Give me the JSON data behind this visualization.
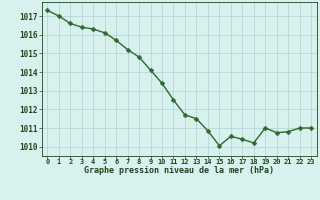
{
  "x": [
    0,
    1,
    2,
    3,
    4,
    5,
    6,
    7,
    8,
    9,
    10,
    11,
    12,
    13,
    14,
    15,
    16,
    17,
    18,
    19,
    20,
    21,
    22,
    23
  ],
  "y": [
    1017.3,
    1017.0,
    1016.6,
    1016.4,
    1016.3,
    1016.1,
    1015.7,
    1015.2,
    1014.8,
    1014.1,
    1013.4,
    1012.5,
    1011.7,
    1011.5,
    1010.85,
    1010.05,
    1010.55,
    1010.4,
    1010.2,
    1011.0,
    1010.75,
    1010.8,
    1011.0,
    1011.0
  ],
  "line_color": "#2d6a2d",
  "marker_color": "#2d6a2d",
  "bg_color": "#d8f0ee",
  "grid_color": "#b0d4d0",
  "label_color": "#1a4a1a",
  "xlabel": "Graphe pression niveau de la mer (hPa)",
  "ylim_min": 1009.5,
  "ylim_max": 1017.75,
  "yticks": [
    1010,
    1011,
    1012,
    1013,
    1014,
    1015,
    1016,
    1017
  ],
  "xticks": [
    0,
    1,
    2,
    3,
    4,
    5,
    6,
    7,
    8,
    9,
    10,
    11,
    12,
    13,
    14,
    15,
    16,
    17,
    18,
    19,
    20,
    21,
    22,
    23
  ],
  "marker_size": 2.5,
  "line_width": 1.0
}
